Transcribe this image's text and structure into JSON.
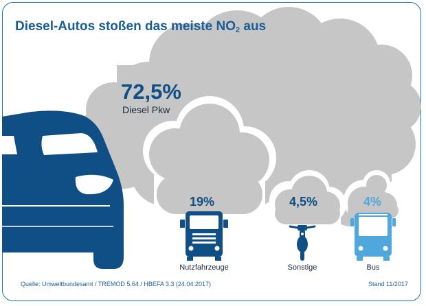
{
  "header": {
    "title_prefix": "Diesel-Autos stoßen das meiste NO",
    "title_subscript": "2",
    "title_suffix": " aus"
  },
  "footer": {
    "source": "Quelle: Umweltbundesamt / TREMOD 5.64 / HBEFA 3.3 (24.04.2017)",
    "date": "Stand 11/2017"
  },
  "colors": {
    "cloud": "#c6c6c6",
    "dark_blue": "#0f4f85",
    "light_blue": "#4fa7dc",
    "frame": "#1a6fb5"
  },
  "chart_data": {
    "type": "pictorial",
    "title": "Diesel-Autos stoßen das meiste NO2 aus",
    "unit": "%",
    "categories": [
      "Diesel Pkw",
      "Nutzfahrzeuge",
      "Sonstige",
      "Bus"
    ],
    "values": [
      72.5,
      19,
      4.5,
      4
    ],
    "value_labels": [
      "72,5%",
      "19%",
      "4,5%",
      "4%"
    ],
    "icons": [
      "car-icon",
      "truck-icon",
      "motorcycle-icon",
      "bus-icon"
    ]
  }
}
